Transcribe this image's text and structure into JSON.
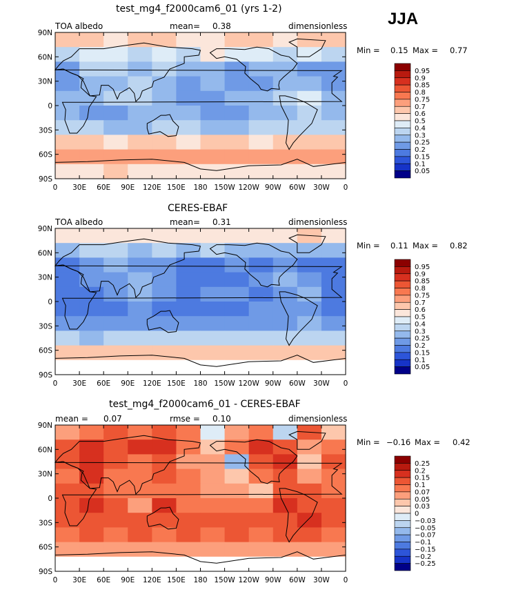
{
  "season": "JJA",
  "xticks": [
    "0",
    "30E",
    "60E",
    "90E",
    "120E",
    "150E",
    "180",
    "150W",
    "120W",
    "90W",
    "60W",
    "30W",
    "0"
  ],
  "yticks": [
    "90N",
    "60N",
    "30N",
    "0",
    "30S",
    "60S",
    "90S"
  ],
  "panels": [
    {
      "title": "test_mg4_f2000cam6_01 (yrs 1-2)",
      "hdr_left": "TOA albedo",
      "stat_label": "mean=",
      "stat_value": "0.38",
      "hdr_right": "dimensionless",
      "min_label": "Min =",
      "min_value": "0.15",
      "max_label": "Max =",
      "max_value": "0.77",
      "colorbar_labels": [
        "0.95",
        "0.9",
        "0.85",
        "0.8",
        "0.75",
        "0.7",
        "0.6",
        "0.5",
        "0.4",
        "0.3",
        "0.25",
        "0.2",
        "0.15",
        "0.1",
        "0.05"
      ],
      "colorbar_colors": [
        "#8b0000",
        "#b81a0f",
        "#d7301f",
        "#ec5634",
        "#f87850",
        "#fc9f7c",
        "#fdc7ac",
        "#fbe6db",
        "#deecf7",
        "#bcd5f0",
        "#94b9ec",
        "#6f9ae6",
        "#4d7ae0",
        "#2d55d9",
        "#1633c8",
        "#000088"
      ],
      "field": [
        [
          "#fdc7ac",
          "#fdc7ac",
          "#fbe6db",
          "#fdc7ac",
          "#fdc7ac",
          "#fbe6db",
          "#fbe6db",
          "#fdc7ac",
          "#fdc7ac",
          "#fbe6db",
          "#fdc7ac",
          "#fdc7ac"
        ],
        [
          "#bcd5f0",
          "#deecf7",
          "#deecf7",
          "#bcd5f0",
          "#deecf7",
          "#bcd5f0",
          "#fbe6db",
          "#deecf7",
          "#deecf7",
          "#bcd5f0",
          "#deecf7",
          "#bcd5f0"
        ],
        [
          "#6f9ae6",
          "#bcd5f0",
          "#bcd5f0",
          "#94b9ec",
          "#bcd5f0",
          "#94b9ec",
          "#94b9ec",
          "#6f9ae6",
          "#94b9ec",
          "#94b9ec",
          "#6f9ae6",
          "#6f9ae6"
        ],
        [
          "#6f9ae6",
          "#94b9ec",
          "#94b9ec",
          "#bcd5f0",
          "#94b9ec",
          "#6f9ae6",
          "#94b9ec",
          "#6f9ae6",
          "#6f9ae6",
          "#94b9ec",
          "#94b9ec",
          "#6f9ae6"
        ],
        [
          "#94b9ec",
          "#94b9ec",
          "#bcd5f0",
          "#bcd5f0",
          "#94b9ec",
          "#6f9ae6",
          "#6f9ae6",
          "#94b9ec",
          "#94b9ec",
          "#bcd5f0",
          "#deecf7",
          "#94b9ec"
        ],
        [
          "#94b9ec",
          "#6f9ae6",
          "#6f9ae6",
          "#94b9ec",
          "#94b9ec",
          "#94b9ec",
          "#6f9ae6",
          "#6f9ae6",
          "#94b9ec",
          "#94b9ec",
          "#bcd5f0",
          "#94b9ec"
        ],
        [
          "#bcd5f0",
          "#bcd5f0",
          "#94b9ec",
          "#94b9ec",
          "#bcd5f0",
          "#bcd5f0",
          "#94b9ec",
          "#94b9ec",
          "#bcd5f0",
          "#bcd5f0",
          "#bcd5f0",
          "#bcd5f0"
        ],
        [
          "#fdc7ac",
          "#fdc7ac",
          "#fbe6db",
          "#fdc7ac",
          "#fdc7ac",
          "#fbe6db",
          "#fdc7ac",
          "#fdc7ac",
          "#fbe6db",
          "#fdc7ac",
          "#fdc7ac",
          "#fdc7ac"
        ],
        [
          "#fc9f7c",
          "#fc9f7c",
          "#fc9f7c",
          "#fc9f7c",
          "#fc9f7c",
          "#fc9f7c",
          "#fc9f7c",
          "#fc9f7c",
          "#fc9f7c",
          "#fc9f7c",
          "#fc9f7c",
          "#fc9f7c"
        ],
        [
          "#fbe6db",
          "#fbe6db",
          "#fdc7ac",
          "#fbe6db",
          "#fbe6db",
          "#fbe6db",
          "#fbe6db",
          "#fbe6db",
          "#fbe6db",
          "#fbe6db",
          "#fbe6db",
          "#fbe6db"
        ]
      ]
    },
    {
      "title": "CERES-EBAF",
      "hdr_left": "TOA albedo",
      "stat_label": "mean=",
      "stat_value": "0.31",
      "hdr_right": "dimensionless",
      "min_label": "Min =",
      "min_value": "0.11",
      "max_label": "Max =",
      "max_value": "0.82",
      "colorbar_labels": [
        "0.95",
        "0.9",
        "0.85",
        "0.8",
        "0.75",
        "0.7",
        "0.6",
        "0.5",
        "0.4",
        "0.3",
        "0.25",
        "0.2",
        "0.15",
        "0.1",
        "0.05"
      ],
      "colorbar_colors": [
        "#8b0000",
        "#b81a0f",
        "#d7301f",
        "#ec5634",
        "#f87850",
        "#fc9f7c",
        "#fdc7ac",
        "#fbe6db",
        "#deecf7",
        "#bcd5f0",
        "#94b9ec",
        "#6f9ae6",
        "#4d7ae0",
        "#2d55d9",
        "#1633c8",
        "#000088"
      ],
      "field": [
        [
          "#fbe6db",
          "#fbe6db",
          "#fbe6db",
          "#fbe6db",
          "#fbe6db",
          "#fbe6db",
          "#fbe6db",
          "#fbe6db",
          "#fbe6db",
          "#fbe6db",
          "#fdc7ac",
          "#fbe6db"
        ],
        [
          "#94b9ec",
          "#bcd5f0",
          "#bcd5f0",
          "#94b9ec",
          "#bcd5f0",
          "#94b9ec",
          "#bcd5f0",
          "#94b9ec",
          "#94b9ec",
          "#94b9ec",
          "#94b9ec",
          "#94b9ec"
        ],
        [
          "#4d7ae0",
          "#6f9ae6",
          "#94b9ec",
          "#6f9ae6",
          "#6f9ae6",
          "#4d7ae0",
          "#4d7ae0",
          "#6f9ae6",
          "#4d7ae0",
          "#6f9ae6",
          "#4d7ae0",
          "#4d7ae0"
        ],
        [
          "#4d7ae0",
          "#6f9ae6",
          "#6f9ae6",
          "#94b9ec",
          "#6f9ae6",
          "#4d7ae0",
          "#4d7ae0",
          "#4d7ae0",
          "#6f9ae6",
          "#94b9ec",
          "#6f9ae6",
          "#4d7ae0"
        ],
        [
          "#4d7ae0",
          "#4d7ae0",
          "#6f9ae6",
          "#94b9ec",
          "#6f9ae6",
          "#4d7ae0",
          "#6f9ae6",
          "#6f9ae6",
          "#4d7ae0",
          "#6f9ae6",
          "#94b9ec",
          "#4d7ae0"
        ],
        [
          "#4d7ae0",
          "#4d7ae0",
          "#4d7ae0",
          "#6f9ae6",
          "#4d7ae0",
          "#4d7ae0",
          "#4d7ae0",
          "#4d7ae0",
          "#6f9ae6",
          "#6f9ae6",
          "#6f9ae6",
          "#4d7ae0"
        ],
        [
          "#6f9ae6",
          "#6f9ae6",
          "#6f9ae6",
          "#6f9ae6",
          "#6f9ae6",
          "#6f9ae6",
          "#6f9ae6",
          "#6f9ae6",
          "#6f9ae6",
          "#6f9ae6",
          "#94b9ec",
          "#6f9ae6"
        ],
        [
          "#bcd5f0",
          "#94b9ec",
          "#bcd5f0",
          "#bcd5f0",
          "#bcd5f0",
          "#bcd5f0",
          "#bcd5f0",
          "#bcd5f0",
          "#bcd5f0",
          "#bcd5f0",
          "#bcd5f0",
          "#bcd5f0"
        ],
        [
          "#fdc7ac",
          "#fdc7ac",
          "#fdc7ac",
          "#fdc7ac",
          "#fdc7ac",
          "#fdc7ac",
          "#fdc7ac",
          "#fdc7ac",
          "#fdc7ac",
          "#fdc7ac",
          "#fdc7ac",
          "#fdc7ac"
        ],
        [
          "#ffffff",
          "#ffffff",
          "#ffffff",
          "#ffffff",
          "#ffffff",
          "#ffffff",
          "#ffffff",
          "#ffffff",
          "#ffffff",
          "#ffffff",
          "#ffffff",
          "#ffffff"
        ]
      ]
    },
    {
      "title": "test_mg4_f2000cam6_01 - CERES-EBAF",
      "hdr_left": "mean =",
      "hdr_left_value": "0.07",
      "stat_label": "rmse =",
      "stat_value": "0.10",
      "hdr_right": "dimensionless",
      "min_label": "Min =",
      "min_value": "−0.16",
      "max_label": "Max =",
      "max_value": "0.42",
      "colorbar_labels": [
        "0.25",
        "0.2",
        "0.15",
        "0.1",
        "0.07",
        "0.05",
        "0.03",
        "0",
        "−0.03",
        "−0.05",
        "−0.07",
        "−0.1",
        "−0.15",
        "−0.2",
        "−0.25"
      ],
      "colorbar_colors": [
        "#8b0000",
        "#b81a0f",
        "#d7301f",
        "#ec5634",
        "#f87850",
        "#fc9f7c",
        "#fdc7ac",
        "#fbe6db",
        "#deecf7",
        "#bcd5f0",
        "#94b9ec",
        "#6f9ae6",
        "#4d7ae0",
        "#2d55d9",
        "#1633c8",
        "#000088"
      ],
      "field": [
        [
          "#fc9f7c",
          "#f87850",
          "#ec5634",
          "#f87850",
          "#ec5634",
          "#f87850",
          "#deecf7",
          "#fc9f7c",
          "#f87850",
          "#bcd5f0",
          "#ec5634",
          "#fdc7ac"
        ],
        [
          "#ec5634",
          "#d7301f",
          "#ec5634",
          "#d7301f",
          "#d7301f",
          "#f87850",
          "#fdc7ac",
          "#f87850",
          "#d7301f",
          "#ec5634",
          "#fc9f7c",
          "#f87850"
        ],
        [
          "#ec5634",
          "#d7301f",
          "#ec5634",
          "#f87850",
          "#ec5634",
          "#fc9f7c",
          "#fc9f7c",
          "#94b9ec",
          "#ec5634",
          "#d7301f",
          "#fdc7ac",
          "#ec5634"
        ],
        [
          "#f87850",
          "#d7301f",
          "#f87850",
          "#f87850",
          "#ec5634",
          "#f87850",
          "#fc9f7c",
          "#fdc7ac",
          "#f87850",
          "#ec5634",
          "#fc9f7c",
          "#f87850"
        ],
        [
          "#ec5634",
          "#ec5634",
          "#f87850",
          "#f87850",
          "#f87850",
          "#f87850",
          "#fc9f7c",
          "#fc9f7c",
          "#fdc7ac",
          "#ec5634",
          "#ec5634",
          "#f87850"
        ],
        [
          "#ec5634",
          "#d7301f",
          "#ec5634",
          "#fc9f7c",
          "#d7301f",
          "#f87850",
          "#f87850",
          "#f87850",
          "#f87850",
          "#d7301f",
          "#ec5634",
          "#ec5634"
        ],
        [
          "#ec5634",
          "#ec5634",
          "#ec5634",
          "#ec5634",
          "#ec5634",
          "#ec5634",
          "#ec5634",
          "#ec5634",
          "#ec5634",
          "#ec5634",
          "#d7301f",
          "#ec5634"
        ],
        [
          "#f87850",
          "#ec5634",
          "#f87850",
          "#ec5634",
          "#f87850",
          "#ec5634",
          "#f87850",
          "#ec5634",
          "#f87850",
          "#ec5634",
          "#ec5634",
          "#f87850"
        ],
        [
          "#fc9f7c",
          "#fc9f7c",
          "#fc9f7c",
          "#fc9f7c",
          "#fc9f7c",
          "#fc9f7c",
          "#fc9f7c",
          "#fc9f7c",
          "#fc9f7c",
          "#fc9f7c",
          "#fc9f7c",
          "#fc9f7c"
        ],
        [
          "#ffffff",
          "#ffffff",
          "#ffffff",
          "#ffffff",
          "#ffffff",
          "#ffffff",
          "#ffffff",
          "#ffffff",
          "#ffffff",
          "#ffffff",
          "#ffffff",
          "#ffffff"
        ]
      ]
    }
  ],
  "chart_data": [
    {
      "type": "heatmap",
      "title": "test_mg4_f2000cam6_01 (yrs 1-2)",
      "variable": "TOA albedo",
      "units": "dimensionless",
      "mean": 0.38,
      "min": 0.15,
      "max": 0.77,
      "x_range": [
        "0",
        "0"
      ],
      "y_range": [
        "90S",
        "90N"
      ],
      "levels": [
        0.05,
        0.1,
        0.15,
        0.2,
        0.25,
        0.3,
        0.4,
        0.5,
        0.6,
        0.7,
        0.75,
        0.8,
        0.85,
        0.9,
        0.95
      ]
    },
    {
      "type": "heatmap",
      "title": "CERES-EBAF",
      "variable": "TOA albedo",
      "units": "dimensionless",
      "mean": 0.31,
      "min": 0.11,
      "max": 0.82,
      "x_range": [
        "0",
        "0"
      ],
      "y_range": [
        "90S",
        "90N"
      ],
      "levels": [
        0.05,
        0.1,
        0.15,
        0.2,
        0.25,
        0.3,
        0.4,
        0.5,
        0.6,
        0.7,
        0.75,
        0.8,
        0.85,
        0.9,
        0.95
      ]
    },
    {
      "type": "heatmap",
      "title": "test_mg4_f2000cam6_01 - CERES-EBAF",
      "units": "dimensionless",
      "mean": 0.07,
      "rmse": 0.1,
      "min": -0.16,
      "max": 0.42,
      "x_range": [
        "0",
        "0"
      ],
      "y_range": [
        "90S",
        "90N"
      ],
      "levels": [
        -0.25,
        -0.2,
        -0.15,
        -0.1,
        -0.07,
        -0.05,
        -0.03,
        0,
        0.03,
        0.05,
        0.07,
        0.1,
        0.15,
        0.2,
        0.25
      ]
    }
  ]
}
